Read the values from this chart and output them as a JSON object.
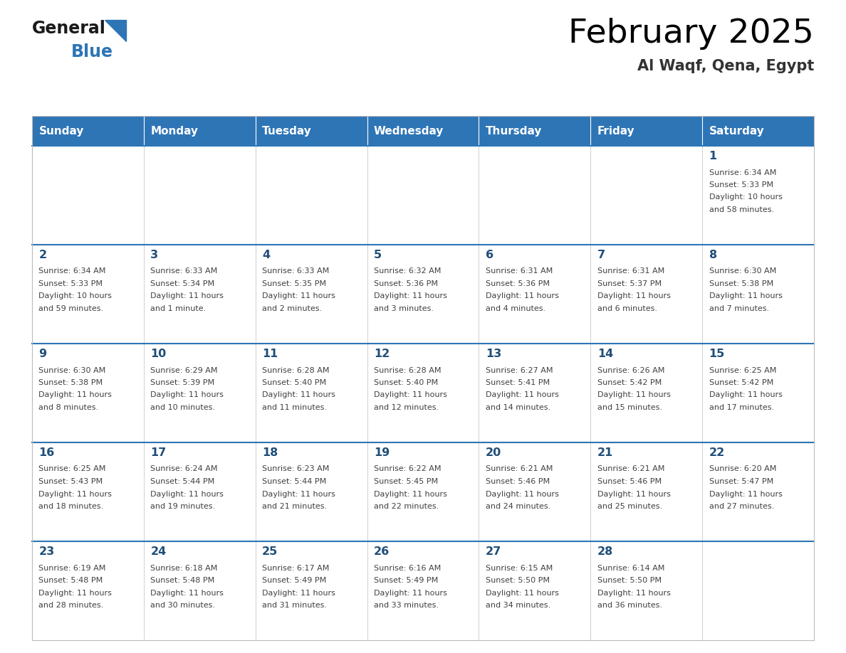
{
  "title": "February 2025",
  "subtitle": "Al Waqf, Qena, Egypt",
  "days_of_week": [
    "Sunday",
    "Monday",
    "Tuesday",
    "Wednesday",
    "Thursday",
    "Friday",
    "Saturday"
  ],
  "header_bg": "#2E75B6",
  "header_text_color": "#FFFFFF",
  "border_color": "#2E75B6",
  "title_color": "#000000",
  "subtitle_color": "#333333",
  "day_num_color": "#1F4E79",
  "cell_text_color": "#404040",
  "cell_border_color": "#BBBBBB",
  "calendar_data": [
    [
      null,
      null,
      null,
      null,
      null,
      null,
      {
        "day": 1,
        "sunrise": "6:34 AM",
        "sunset": "5:33 PM",
        "daylight_line1": "10 hours",
        "daylight_line2": "and 58 minutes."
      }
    ],
    [
      {
        "day": 2,
        "sunrise": "6:34 AM",
        "sunset": "5:33 PM",
        "daylight_line1": "10 hours",
        "daylight_line2": "and 59 minutes."
      },
      {
        "day": 3,
        "sunrise": "6:33 AM",
        "sunset": "5:34 PM",
        "daylight_line1": "11 hours",
        "daylight_line2": "and 1 minute."
      },
      {
        "day": 4,
        "sunrise": "6:33 AM",
        "sunset": "5:35 PM",
        "daylight_line1": "11 hours",
        "daylight_line2": "and 2 minutes."
      },
      {
        "day": 5,
        "sunrise": "6:32 AM",
        "sunset": "5:36 PM",
        "daylight_line1": "11 hours",
        "daylight_line2": "and 3 minutes."
      },
      {
        "day": 6,
        "sunrise": "6:31 AM",
        "sunset": "5:36 PM",
        "daylight_line1": "11 hours",
        "daylight_line2": "and 4 minutes."
      },
      {
        "day": 7,
        "sunrise": "6:31 AM",
        "sunset": "5:37 PM",
        "daylight_line1": "11 hours",
        "daylight_line2": "and 6 minutes."
      },
      {
        "day": 8,
        "sunrise": "6:30 AM",
        "sunset": "5:38 PM",
        "daylight_line1": "11 hours",
        "daylight_line2": "and 7 minutes."
      }
    ],
    [
      {
        "day": 9,
        "sunrise": "6:30 AM",
        "sunset": "5:38 PM",
        "daylight_line1": "11 hours",
        "daylight_line2": "and 8 minutes."
      },
      {
        "day": 10,
        "sunrise": "6:29 AM",
        "sunset": "5:39 PM",
        "daylight_line1": "11 hours",
        "daylight_line2": "and 10 minutes."
      },
      {
        "day": 11,
        "sunrise": "6:28 AM",
        "sunset": "5:40 PM",
        "daylight_line1": "11 hours",
        "daylight_line2": "and 11 minutes."
      },
      {
        "day": 12,
        "sunrise": "6:28 AM",
        "sunset": "5:40 PM",
        "daylight_line1": "11 hours",
        "daylight_line2": "and 12 minutes."
      },
      {
        "day": 13,
        "sunrise": "6:27 AM",
        "sunset": "5:41 PM",
        "daylight_line1": "11 hours",
        "daylight_line2": "and 14 minutes."
      },
      {
        "day": 14,
        "sunrise": "6:26 AM",
        "sunset": "5:42 PM",
        "daylight_line1": "11 hours",
        "daylight_line2": "and 15 minutes."
      },
      {
        "day": 15,
        "sunrise": "6:25 AM",
        "sunset": "5:42 PM",
        "daylight_line1": "11 hours",
        "daylight_line2": "and 17 minutes."
      }
    ],
    [
      {
        "day": 16,
        "sunrise": "6:25 AM",
        "sunset": "5:43 PM",
        "daylight_line1": "11 hours",
        "daylight_line2": "and 18 minutes."
      },
      {
        "day": 17,
        "sunrise": "6:24 AM",
        "sunset": "5:44 PM",
        "daylight_line1": "11 hours",
        "daylight_line2": "and 19 minutes."
      },
      {
        "day": 18,
        "sunrise": "6:23 AM",
        "sunset": "5:44 PM",
        "daylight_line1": "11 hours",
        "daylight_line2": "and 21 minutes."
      },
      {
        "day": 19,
        "sunrise": "6:22 AM",
        "sunset": "5:45 PM",
        "daylight_line1": "11 hours",
        "daylight_line2": "and 22 minutes."
      },
      {
        "day": 20,
        "sunrise": "6:21 AM",
        "sunset": "5:46 PM",
        "daylight_line1": "11 hours",
        "daylight_line2": "and 24 minutes."
      },
      {
        "day": 21,
        "sunrise": "6:21 AM",
        "sunset": "5:46 PM",
        "daylight_line1": "11 hours",
        "daylight_line2": "and 25 minutes."
      },
      {
        "day": 22,
        "sunrise": "6:20 AM",
        "sunset": "5:47 PM",
        "daylight_line1": "11 hours",
        "daylight_line2": "and 27 minutes."
      }
    ],
    [
      {
        "day": 23,
        "sunrise": "6:19 AM",
        "sunset": "5:48 PM",
        "daylight_line1": "11 hours",
        "daylight_line2": "and 28 minutes."
      },
      {
        "day": 24,
        "sunrise": "6:18 AM",
        "sunset": "5:48 PM",
        "daylight_line1": "11 hours",
        "daylight_line2": "and 30 minutes."
      },
      {
        "day": 25,
        "sunrise": "6:17 AM",
        "sunset": "5:49 PM",
        "daylight_line1": "11 hours",
        "daylight_line2": "and 31 minutes."
      },
      {
        "day": 26,
        "sunrise": "6:16 AM",
        "sunset": "5:49 PM",
        "daylight_line1": "11 hours",
        "daylight_line2": "and 33 minutes."
      },
      {
        "day": 27,
        "sunrise": "6:15 AM",
        "sunset": "5:50 PM",
        "daylight_line1": "11 hours",
        "daylight_line2": "and 34 minutes."
      },
      {
        "day": 28,
        "sunrise": "6:14 AM",
        "sunset": "5:50 PM",
        "daylight_line1": "11 hours",
        "daylight_line2": "and 36 minutes."
      },
      null
    ]
  ]
}
